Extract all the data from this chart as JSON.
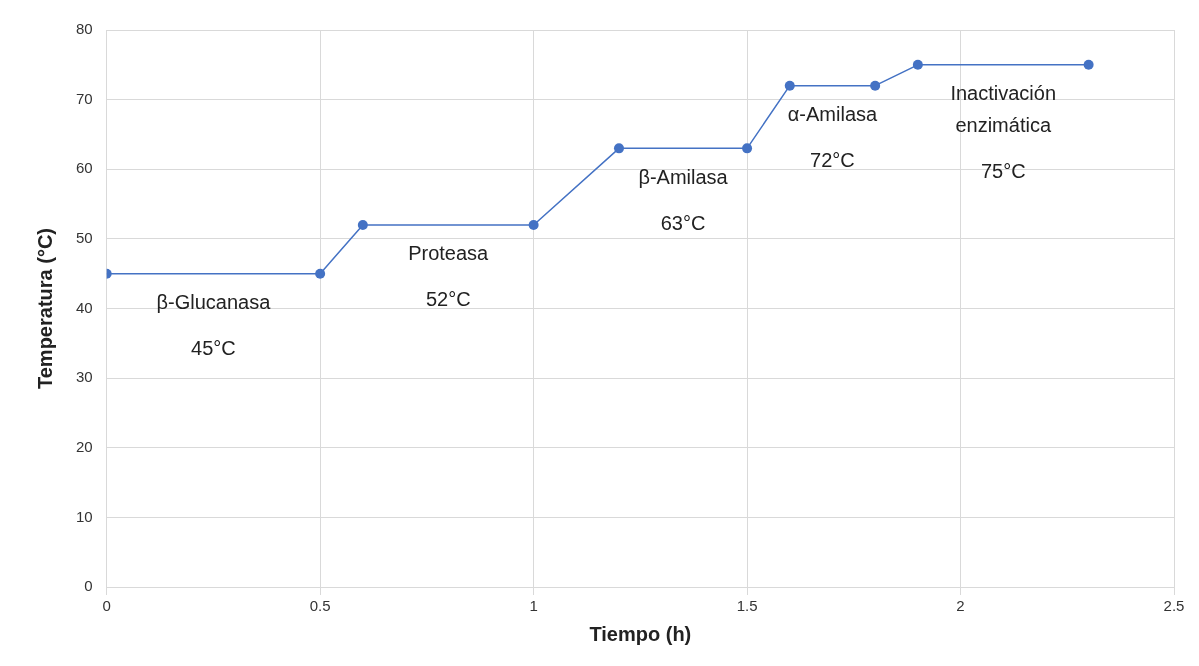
{
  "chart_data": {
    "type": "line",
    "xlabel": "Tiempo (h)",
    "ylabel": "Temperatura (°C)",
    "x": [
      0,
      0.5,
      0.6,
      1,
      1.2,
      1.5,
      1.6,
      1.8,
      1.9,
      2.3
    ],
    "series": [
      {
        "color": "#4472c4",
        "values": [
          45,
          45,
          52,
          52,
          63,
          63,
          72,
          72,
          75,
          75
        ]
      }
    ],
    "xlim": [
      0,
      2.5
    ],
    "xticks": [
      0,
      0.5,
      1,
      1.5,
      2,
      2.5
    ],
    "ylim": [
      0,
      80
    ],
    "yticks": [
      0,
      10,
      20,
      30,
      40,
      50,
      60,
      70,
      80
    ],
    "grid": true,
    "legend": false,
    "marker": "circle",
    "line_style": "solid",
    "annotations": [
      "β-Glucanasa",
      "45°C",
      "Proteasa",
      "52°C",
      "β-Amilasa",
      "63°C",
      "α-Amilasa",
      "72°C",
      "Inactivación enzimática",
      "75°C"
    ]
  }
}
